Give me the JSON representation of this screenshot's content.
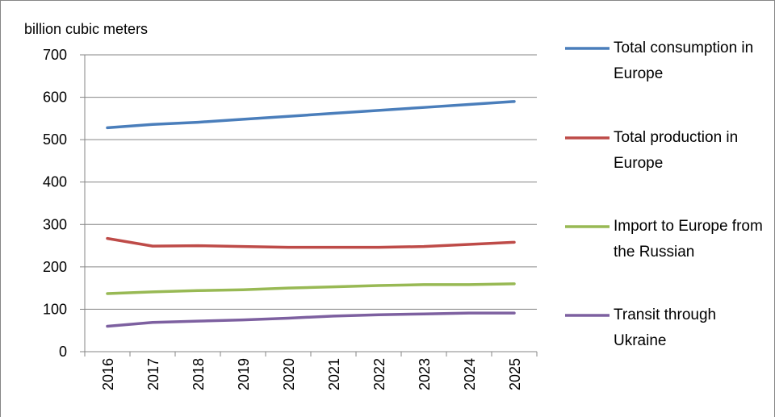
{
  "chart_data": {
    "type": "line",
    "y_label": "billion cubic meters",
    "categories": [
      "2016",
      "2017",
      "2018",
      "2019",
      "2020",
      "2021",
      "2022",
      "2023",
      "2024",
      "2025"
    ],
    "series": [
      {
        "name": "Total consumption in Europe",
        "color": "#4a7ebb",
        "values": [
          528,
          536,
          541,
          548,
          555,
          562,
          569,
          576,
          583,
          590
        ]
      },
      {
        "name": "Total production in Europe",
        "color": "#be4b48",
        "values": [
          267,
          249,
          250,
          248,
          246,
          246,
          246,
          248,
          253,
          258
        ]
      },
      {
        "name": "Import to Europe from the Russian",
        "color": "#98b954",
        "values": [
          137,
          141,
          144,
          146,
          150,
          153,
          156,
          158,
          158,
          160
        ]
      },
      {
        "name": "Transit through Ukraine",
        "color": "#7d60a0",
        "values": [
          60,
          69,
          72,
          75,
          79,
          84,
          87,
          89,
          91,
          91
        ]
      }
    ],
    "ylim": [
      0,
      700
    ],
    "yticks": [
      0,
      100,
      200,
      300,
      400,
      500,
      600,
      700
    ],
    "grid": true
  }
}
